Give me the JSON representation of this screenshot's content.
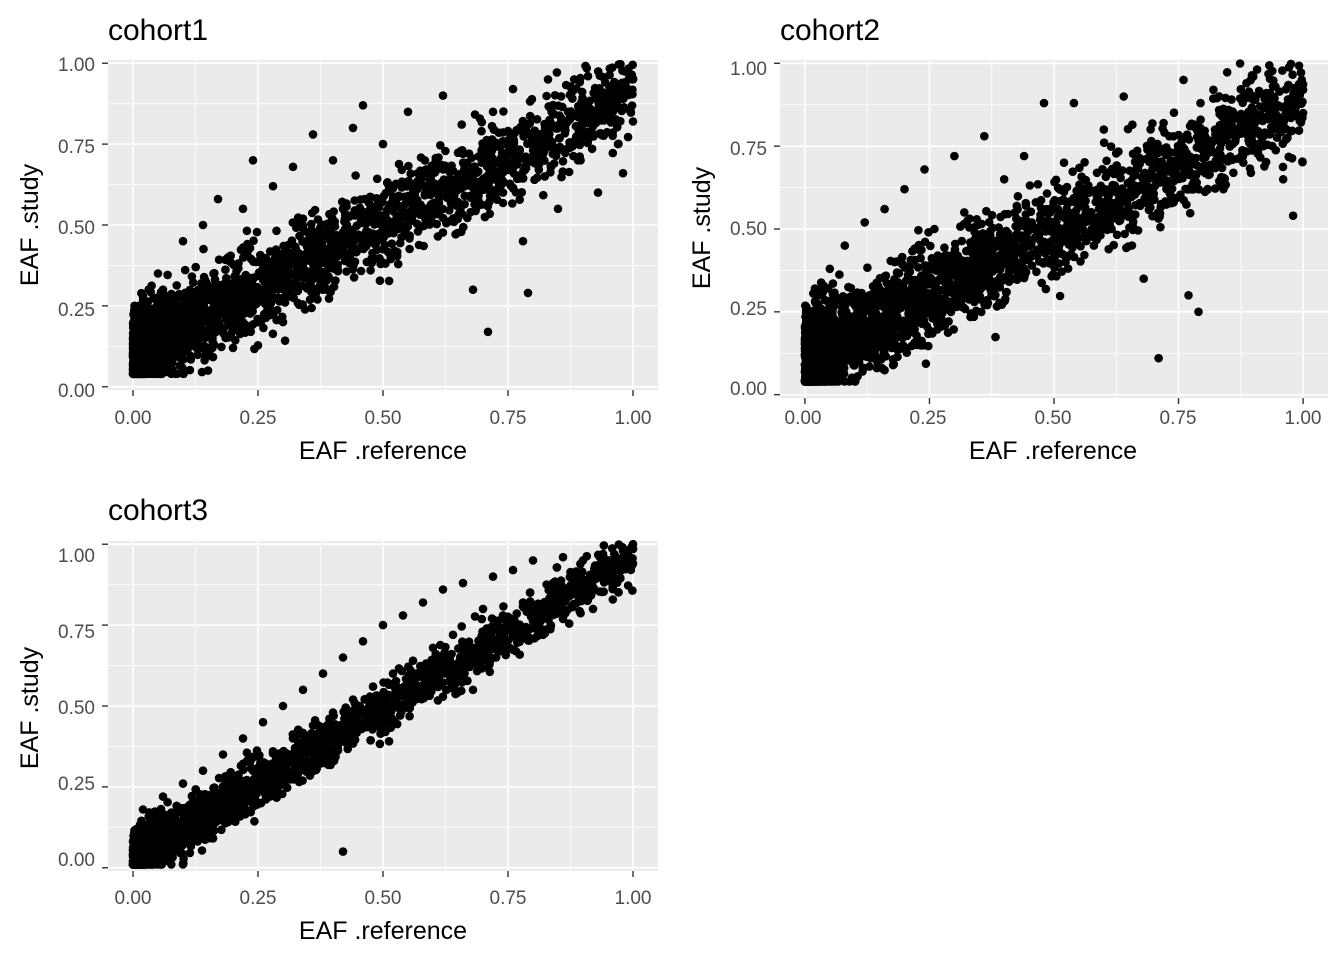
{
  "chart_data": [
    {
      "type": "scatter",
      "title": "cohort1",
      "xlabel": "EAF .reference",
      "ylabel": "EAF .study",
      "xlim": [
        -0.05,
        1.05
      ],
      "ylim": [
        -0.01,
        1.01
      ],
      "xticks": [
        0,
        0.25,
        0.5,
        0.75,
        1
      ],
      "yticks": [
        0,
        0.25,
        0.5,
        0.75,
        1
      ],
      "xtick_labels": [
        "0.00",
        "0.25",
        "0.50",
        "0.75",
        "1.00"
      ],
      "ytick_labels": [
        "0.00",
        "0.25",
        "0.50",
        "0.75",
        "1.00"
      ],
      "grid": true,
      "point_color": "#000000",
      "panel_background": "#ebebeb",
      "points": [
        [
          0.0,
          0.15
        ],
        [
          0.01,
          0.22
        ],
        [
          0.02,
          0.28
        ],
        [
          0.03,
          0.1
        ],
        [
          0.05,
          0.35
        ],
        [
          0.06,
          0.3
        ],
        [
          0.08,
          0.25
        ],
        [
          0.1,
          0.45
        ],
        [
          0.12,
          0.18
        ],
        [
          0.14,
          0.5
        ],
        [
          0.15,
          0.05
        ],
        [
          0.17,
          0.58
        ],
        [
          0.19,
          0.4
        ],
        [
          0.2,
          0.12
        ],
        [
          0.22,
          0.55
        ],
        [
          0.24,
          0.7
        ],
        [
          0.26,
          0.33
        ],
        [
          0.28,
          0.62
        ],
        [
          0.3,
          0.2
        ],
        [
          0.32,
          0.68
        ],
        [
          0.34,
          0.45
        ],
        [
          0.36,
          0.78
        ],
        [
          0.38,
          0.3
        ],
        [
          0.4,
          0.7
        ],
        [
          0.42,
          0.55
        ],
        [
          0.44,
          0.8
        ],
        [
          0.46,
          0.87
        ],
        [
          0.48,
          0.4
        ],
        [
          0.5,
          0.75
        ],
        [
          0.52,
          0.58
        ],
        [
          0.55,
          0.85
        ],
        [
          0.57,
          0.48
        ],
        [
          0.6,
          0.66
        ],
        [
          0.62,
          0.9
        ],
        [
          0.64,
          0.52
        ],
        [
          0.66,
          0.72
        ],
        [
          0.68,
          0.3
        ],
        [
          0.71,
          0.17
        ],
        [
          0.72,
          0.85
        ],
        [
          0.74,
          0.6
        ],
        [
          0.76,
          0.92
        ],
        [
          0.78,
          0.45
        ],
        [
          0.79,
          0.29
        ],
        [
          0.81,
          0.75
        ],
        [
          0.83,
          0.95
        ],
        [
          0.85,
          0.55
        ],
        [
          0.87,
          0.85
        ],
        [
          0.89,
          0.7
        ],
        [
          0.91,
          0.96
        ],
        [
          0.93,
          0.6
        ],
        [
          0.95,
          0.88
        ],
        [
          0.97,
          0.75
        ],
        [
          0.98,
          0.66
        ],
        [
          1.0,
          0.95
        ],
        [
          1.0,
          0.82
        ]
      ]
    },
    {
      "type": "scatter",
      "title": "cohort2",
      "xlabel": "EAF .reference",
      "ylabel": "EAF .study",
      "xlim": [
        -0.05,
        1.05
      ],
      "ylim": [
        -0.01,
        1.01
      ],
      "xticks": [
        0,
        0.25,
        0.5,
        0.75,
        1
      ],
      "yticks": [
        0,
        0.25,
        0.5,
        0.75,
        1
      ],
      "xtick_labels": [
        "0.00",
        "0.25",
        "0.50",
        "0.75",
        "1.00"
      ],
      "ytick_labels": [
        "0.00",
        "0.25",
        "0.50",
        "0.75",
        "1.00"
      ],
      "grid": true,
      "point_color": "#000000",
      "panel_background": "#ebebeb",
      "points": [
        [
          0.0,
          0.14
        ],
        [
          0.01,
          0.25
        ],
        [
          0.02,
          0.32
        ],
        [
          0.03,
          0.08
        ],
        [
          0.05,
          0.38
        ],
        [
          0.06,
          0.2
        ],
        [
          0.08,
          0.45
        ],
        [
          0.1,
          0.3
        ],
        [
          0.12,
          0.52
        ],
        [
          0.14,
          0.15
        ],
        [
          0.16,
          0.56
        ],
        [
          0.18,
          0.4
        ],
        [
          0.2,
          0.62
        ],
        [
          0.22,
          0.25
        ],
        [
          0.24,
          0.68
        ],
        [
          0.26,
          0.5
        ],
        [
          0.28,
          0.35
        ],
        [
          0.3,
          0.72
        ],
        [
          0.32,
          0.55
        ],
        [
          0.34,
          0.28
        ],
        [
          0.36,
          0.78
        ],
        [
          0.38,
          0.45
        ],
        [
          0.4,
          0.65
        ],
        [
          0.42,
          0.35
        ],
        [
          0.44,
          0.72
        ],
        [
          0.46,
          0.5
        ],
        [
          0.48,
          0.88
        ],
        [
          0.5,
          0.42
        ],
        [
          0.52,
          0.7
        ],
        [
          0.54,
          0.88
        ],
        [
          0.56,
          0.6
        ],
        [
          0.58,
          0.45
        ],
        [
          0.6,
          0.8
        ],
        [
          0.62,
          0.55
        ],
        [
          0.64,
          0.9
        ],
        [
          0.66,
          0.66
        ],
        [
          0.68,
          0.35
        ],
        [
          0.71,
          0.11
        ],
        [
          0.72,
          0.82
        ],
        [
          0.74,
          0.58
        ],
        [
          0.76,
          0.95
        ],
        [
          0.77,
          0.3
        ],
        [
          0.79,
          0.25
        ],
        [
          0.8,
          0.72
        ],
        [
          0.82,
          0.92
        ],
        [
          0.84,
          0.62
        ],
        [
          0.86,
          0.85
        ],
        [
          0.88,
          0.7
        ],
        [
          0.9,
          0.96
        ],
        [
          0.92,
          0.75
        ],
        [
          0.94,
          0.9
        ],
        [
          0.96,
          0.65
        ],
        [
          0.98,
          0.54
        ],
        [
          1.0,
          0.92
        ],
        [
          1.0,
          0.85
        ]
      ]
    },
    {
      "type": "scatter",
      "title": "cohort3",
      "xlabel": "EAF .reference",
      "ylabel": "EAF .study",
      "xlim": [
        -0.05,
        1.05
      ],
      "ylim": [
        -0.01,
        1.01
      ],
      "xticks": [
        0,
        0.25,
        0.5,
        0.75,
        1
      ],
      "yticks": [
        0,
        0.25,
        0.5,
        0.75,
        1
      ],
      "xtick_labels": [
        "0.00",
        "0.25",
        "0.50",
        "0.75",
        "1.00"
      ],
      "ytick_labels": [
        "0.00",
        "0.25",
        "0.50",
        "0.75",
        "1.00"
      ],
      "grid": true,
      "point_color": "#000000",
      "panel_background": "#ebebeb",
      "points": [
        [
          0.0,
          0.04
        ],
        [
          0.01,
          0.1
        ],
        [
          0.02,
          0.18
        ],
        [
          0.04,
          0.08
        ],
        [
          0.06,
          0.22
        ],
        [
          0.08,
          0.12
        ],
        [
          0.1,
          0.26
        ],
        [
          0.12,
          0.15
        ],
        [
          0.14,
          0.3
        ],
        [
          0.16,
          0.2
        ],
        [
          0.18,
          0.35
        ],
        [
          0.2,
          0.25
        ],
        [
          0.22,
          0.4
        ],
        [
          0.24,
          0.3
        ],
        [
          0.26,
          0.45
        ],
        [
          0.28,
          0.36
        ],
        [
          0.3,
          0.5
        ],
        [
          0.32,
          0.4
        ],
        [
          0.34,
          0.55
        ],
        [
          0.36,
          0.44
        ],
        [
          0.38,
          0.6
        ],
        [
          0.4,
          0.48
        ],
        [
          0.42,
          0.05
        ],
        [
          0.42,
          0.65
        ],
        [
          0.44,
          0.52
        ],
        [
          0.46,
          0.7
        ],
        [
          0.48,
          0.56
        ],
        [
          0.5,
          0.75
        ],
        [
          0.52,
          0.6
        ],
        [
          0.54,
          0.78
        ],
        [
          0.56,
          0.64
        ],
        [
          0.58,
          0.82
        ],
        [
          0.6,
          0.68
        ],
        [
          0.62,
          0.86
        ],
        [
          0.64,
          0.72
        ],
        [
          0.66,
          0.88
        ],
        [
          0.68,
          0.55
        ],
        [
          0.7,
          0.8
        ],
        [
          0.72,
          0.9
        ],
        [
          0.74,
          0.78
        ],
        [
          0.76,
          0.92
        ],
        [
          0.78,
          0.82
        ],
        [
          0.8,
          0.95
        ],
        [
          0.82,
          0.72
        ],
        [
          0.84,
          0.88
        ],
        [
          0.86,
          0.96
        ],
        [
          0.88,
          0.85
        ],
        [
          0.9,
          0.95
        ],
        [
          0.92,
          0.8
        ],
        [
          0.94,
          0.97
        ],
        [
          0.96,
          0.9
        ],
        [
          0.98,
          0.98
        ],
        [
          1.0,
          0.94
        ],
        [
          1.0,
          1.0
        ]
      ]
    }
  ]
}
